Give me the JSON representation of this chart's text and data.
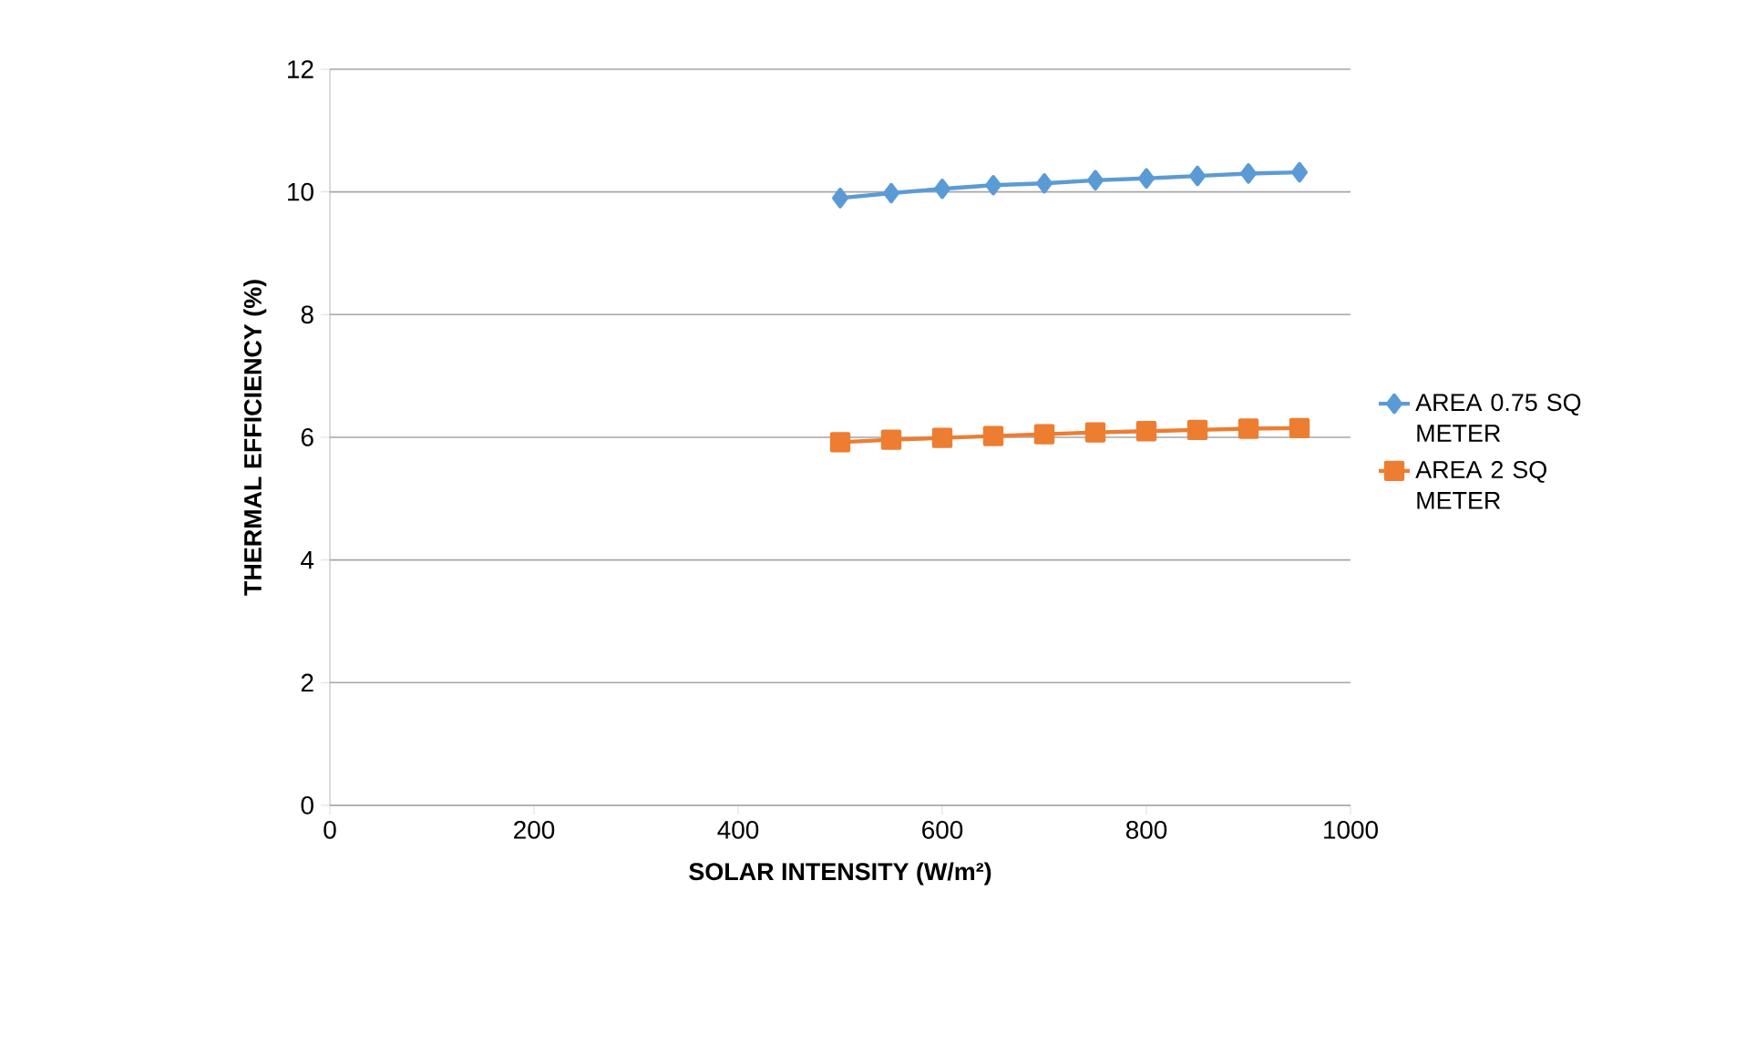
{
  "chart_data": {
    "type": "line",
    "xlabel": "SOLAR INTENSITY (W/m²)",
    "ylabel": "THERMAL EFFICIENCY (%)",
    "x": [
      500,
      550,
      600,
      650,
      700,
      750,
      800,
      850,
      900,
      950
    ],
    "series": [
      {
        "name": "AREA 0.75 SQ METER",
        "color": "#5b9bd5",
        "marker": "diamond",
        "values": [
          9.9,
          9.98,
          10.05,
          10.11,
          10.14,
          10.19,
          10.22,
          10.26,
          10.3,
          10.32
        ]
      },
      {
        "name": "AREA 2 SQ METER",
        "color": "#ed7d31",
        "marker": "square",
        "values": [
          5.92,
          5.96,
          5.99,
          6.02,
          6.05,
          6.08,
          6.1,
          6.12,
          6.14,
          6.15
        ]
      }
    ],
    "xlim": [
      0,
      1000
    ],
    "xticks": [
      0,
      200,
      400,
      600,
      800,
      1000
    ],
    "ylim": [
      0,
      12
    ],
    "yticks": [
      0,
      2,
      4,
      6,
      8,
      10,
      12
    ],
    "grid": "y",
    "legend": "right",
    "line_style": "solid"
  }
}
